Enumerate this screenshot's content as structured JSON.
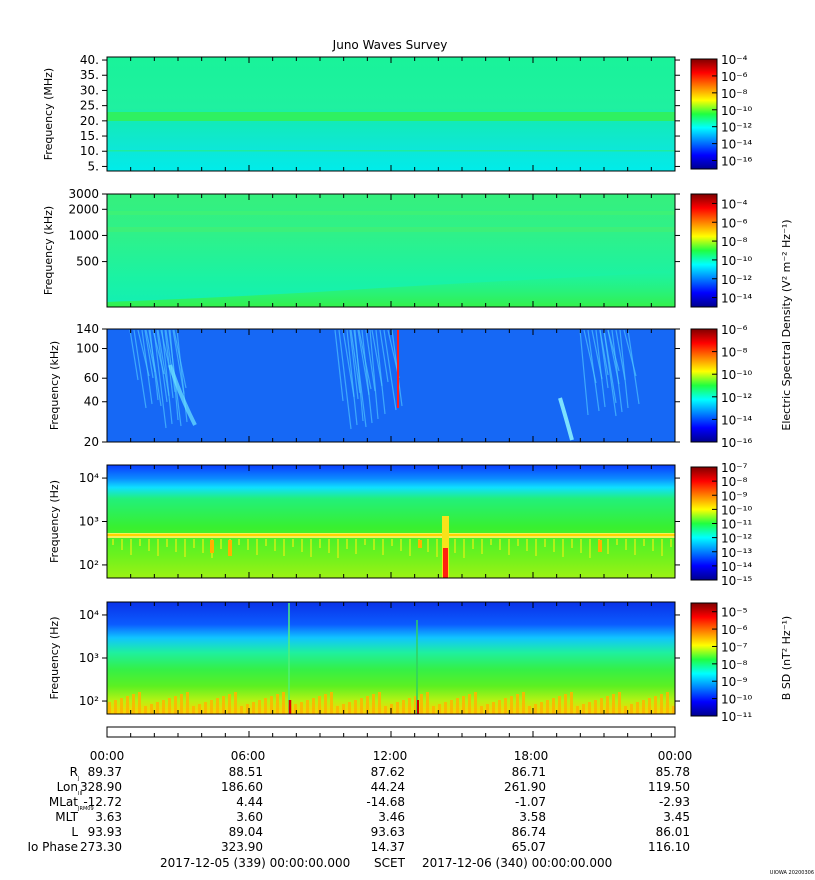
{
  "title": "Juno Waves Survey",
  "credit": "UIOWA 20200306",
  "chart_data": [
    {
      "type": "heatmap",
      "ylabel": "Frequency (MHz)",
      "yscale": "linear",
      "ylim": [
        3.5,
        41
      ],
      "yticks": [
        {
          "v": 40,
          "label": "40."
        },
        {
          "v": 35,
          "label": "35."
        },
        {
          "v": 30,
          "label": "30."
        },
        {
          "v": 25,
          "label": "25."
        },
        {
          "v": 20,
          "label": "20."
        },
        {
          "v": 15,
          "label": "15."
        },
        {
          "v": 10,
          "label": "10."
        },
        {
          "v": 5,
          "label": "5."
        }
      ],
      "colorbar": {
        "min": -17,
        "max": -4,
        "ticks": [
          -4,
          -6,
          -8,
          -10,
          -12,
          -14,
          -16
        ],
        "base": "10"
      },
      "colorbar_label": ""
    },
    {
      "type": "heatmap",
      "ylabel": "Frequency (kHz)",
      "yscale": "log",
      "ylim": [
        150,
        3000
      ],
      "yticks": [
        {
          "v": 3000,
          "label": "3000"
        },
        {
          "v": 2000,
          "label": "2000"
        },
        {
          "v": 1000,
          "label": "1000"
        },
        {
          "v": 500,
          "label": "500"
        }
      ],
      "colorbar": {
        "min": -15,
        "max": -3,
        "ticks": [
          -4,
          -6,
          -8,
          -10,
          -12,
          -14
        ],
        "base": "10"
      },
      "colorbar_label": "Electric Spectral Density (V² m⁻² Hz⁻¹)"
    },
    {
      "type": "heatmap",
      "ylabel": "Frequency (kHz)",
      "yscale": "log",
      "ylim": [
        20,
        140
      ],
      "yticks": [
        {
          "v": 140,
          "label": "140"
        },
        {
          "v": 100,
          "label": "100"
        },
        {
          "v": 60,
          "label": "60"
        },
        {
          "v": 40,
          "label": "40"
        },
        {
          "v": 20,
          "label": "20"
        }
      ],
      "colorbar": {
        "min": -16,
        "max": -6,
        "ticks": [
          -6,
          -8,
          -10,
          -12,
          -14,
          -16
        ],
        "base": "10"
      },
      "colorbar_label": ""
    },
    {
      "type": "heatmap",
      "ylabel": "Frequency (Hz)",
      "yscale": "log",
      "ylim": [
        50,
        20000
      ],
      "yticks": [
        {
          "v": 10000,
          "label": "10⁴"
        },
        {
          "v": 1000,
          "label": "10³"
        },
        {
          "v": 100,
          "label": "10²"
        }
      ],
      "colorbar": {
        "min": -15,
        "max": -7,
        "ticks": [
          -7,
          -8,
          -9,
          -10,
          -11,
          -12,
          -13,
          -14,
          -15
        ],
        "base": "10"
      },
      "colorbar_label": ""
    },
    {
      "type": "heatmap",
      "ylabel": "Frequency (Hz)",
      "yscale": "log",
      "ylim": [
        50,
        20000
      ],
      "yticks": [
        {
          "v": 10000,
          "label": "10⁴"
        },
        {
          "v": 1000,
          "label": "10³"
        },
        {
          "v": 100,
          "label": "10²"
        }
      ],
      "colorbar": {
        "min": -11,
        "max": -4.5,
        "ticks": [
          -5,
          -6,
          -7,
          -8,
          -9,
          -10,
          -11
        ],
        "base": "10"
      },
      "colorbar_label": "B SD (nT² Hz⁻¹)"
    }
  ],
  "x_axis": {
    "time_labels": [
      "00:00",
      "06:00",
      "12:00",
      "18:00",
      "00:00"
    ],
    "range_hours": [
      0,
      24
    ],
    "rows": [
      {
        "label": "R",
        "sub": "J",
        "values": [
          "89.37",
          "88.51",
          "87.62",
          "86.71",
          "85.78"
        ]
      },
      {
        "label": "Lon",
        "sub": "III",
        "values": [
          "328.90",
          "186.60",
          "44.24",
          "261.90",
          "119.50"
        ]
      },
      {
        "label": "MLat",
        "sub": "JRM09",
        "values": [
          "-12.72",
          "4.44",
          "-14.68",
          "-1.07",
          "-2.93"
        ]
      },
      {
        "label": "MLT",
        "sub": "",
        "values": [
          "3.63",
          "3.60",
          "3.46",
          "3.58",
          "3.45"
        ]
      },
      {
        "label": "L",
        "sub": "",
        "values": [
          "93.93",
          "89.04",
          "93.63",
          "86.74",
          "86.01"
        ]
      },
      {
        "label": "Io Phase",
        "sub": "",
        "values": [
          "273.30",
          "323.90",
          "14.37",
          "65.07",
          "116.10"
        ]
      }
    ],
    "start": "2017-12-05 (339) 00:00:00.000",
    "scet": "SCET",
    "end": "2017-12-06 (340) 00:00:00.000"
  }
}
